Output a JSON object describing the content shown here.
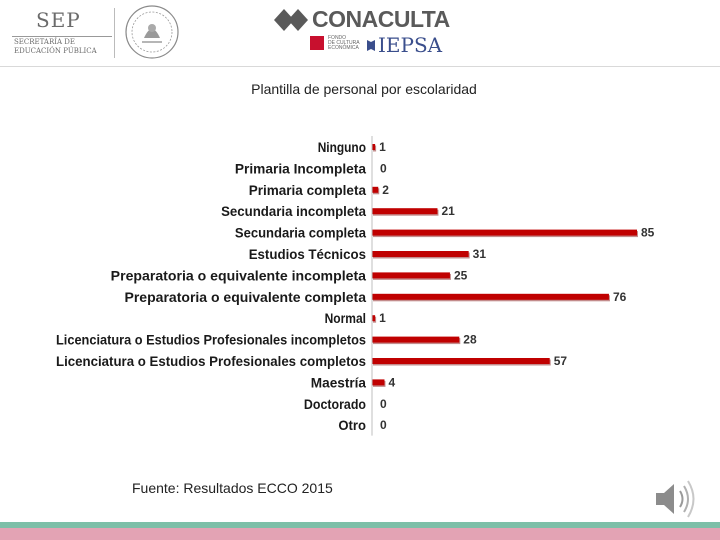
{
  "header": {
    "sep": {
      "title": "SEP",
      "sub_line1": "SECRETARÍA DE",
      "sub_line2": "EDUCACIÓN PÚBLICA"
    },
    "conaculta": {
      "name": "CONACULTA",
      "fce_line1": "FONDO",
      "fce_line2": "DE CULTURA",
      "fce_line3": "ECONÓMICA",
      "iepsa": "IEPSA"
    }
  },
  "chart_title": "Plantilla de personal por escolaridad",
  "source_note": "Fuente: Resultados ECCO 2015",
  "colors": {
    "bar": "#c00000",
    "bar_shadow": "#7a0000",
    "footer_green": "#7dbfa8",
    "footer_pink": "#e3a3b4"
  },
  "icons": {
    "speaker": "speaker-icon",
    "seal": "mexican-seal-icon"
  },
  "chart_data": {
    "type": "bar",
    "orientation": "horizontal",
    "title": "Plantilla de personal por escolaridad",
    "categories": [
      "Ninguno",
      "Primaria Incompleta",
      "Primaria completa",
      "Secundaria incompleta",
      "Secundaria completa",
      "Estudios Técnicos",
      "Preparatoria o equivalente incompleta",
      "Preparatoria o equivalente completa",
      "Normal",
      "Licenciatura o Estudios Profesionales incompletos",
      "Licenciatura o Estudios Profesionales completos",
      "Maestría",
      "Doctorado",
      "Otro"
    ],
    "values": [
      1,
      0,
      2,
      21,
      85,
      31,
      25,
      76,
      1,
      28,
      57,
      4,
      0,
      0
    ],
    "xlim": [
      0,
      85
    ],
    "data_labels": true,
    "grid": false,
    "legend": "none"
  }
}
